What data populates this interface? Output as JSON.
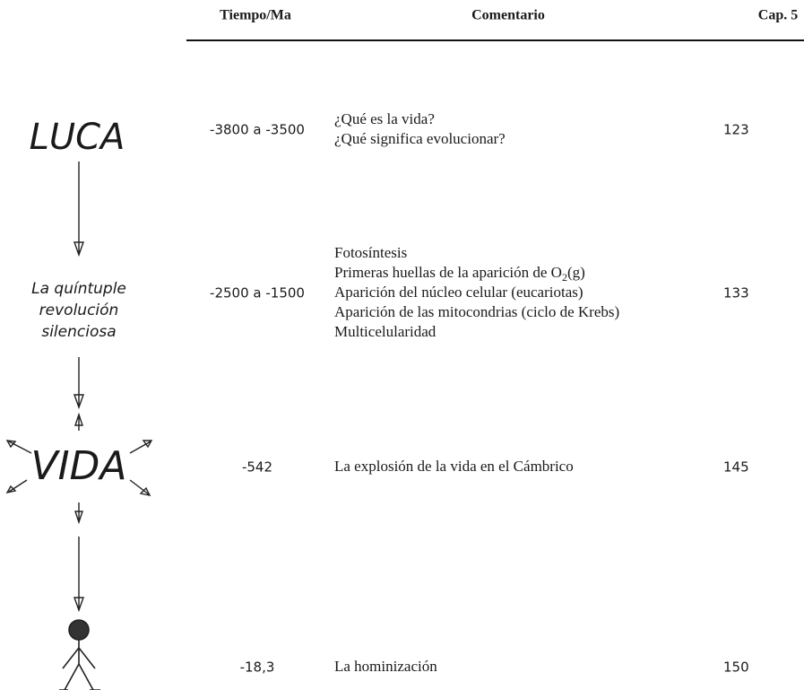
{
  "header": {
    "columns": [
      "Tiempo/Ma",
      "Comentario",
      "Cap. 5"
    ]
  },
  "diagram": {
    "nodes": [
      {
        "label": "LUCA"
      },
      {
        "label_lines": [
          "La quíntuple",
          "revolución",
          "silenciosa"
        ]
      },
      {
        "label": "VIDA"
      }
    ]
  },
  "table": {
    "rows": [
      {
        "time": "-3800 a -3500",
        "comment": [
          "¿Qué es la vida?",
          "¿Qué significa evolucionar?"
        ],
        "chapter": 123
      },
      {
        "time": "-2500 a -1500",
        "comment": [
          "Fotosíntesis",
          {
            "text": "Primeras huellas de la aparición de O",
            "sub": "2",
            "after": "(g)"
          },
          "Aparición del núcleo celular (eucariotas)",
          "Aparición de las mitocondrias (ciclo de Krebs)",
          "Multicelularidad"
        ],
        "chapter": 133
      },
      {
        "time": "-542",
        "comment": [
          "La explosión de la vida en el Cámbrico"
        ],
        "chapter": 145
      },
      {
        "time": "-18,3",
        "comment": [
          "La hominización"
        ],
        "chapter": 150
      }
    ]
  }
}
